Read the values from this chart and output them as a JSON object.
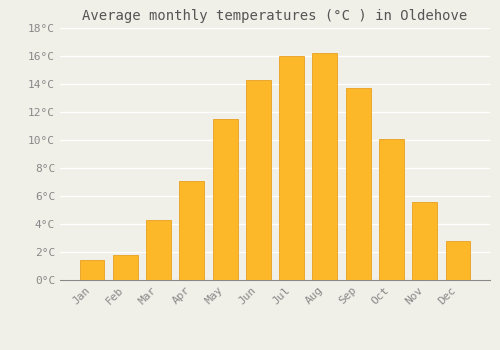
{
  "months": [
    "Jan",
    "Feb",
    "Mar",
    "Apr",
    "May",
    "Jun",
    "Jul",
    "Aug",
    "Sep",
    "Oct",
    "Nov",
    "Dec"
  ],
  "temperatures": [
    1.4,
    1.8,
    4.3,
    7.1,
    11.5,
    14.3,
    16.0,
    16.2,
    13.7,
    10.1,
    5.6,
    2.8
  ],
  "bar_color": "#FDB82A",
  "bar_edge_color": "#E8A020",
  "title": "Average monthly temperatures (°C ) in Oldehove",
  "ylim": [
    0,
    18
  ],
  "ytick_step": 2,
  "background_color": "#F0EFE8",
  "grid_color": "#FFFFFF",
  "title_fontsize": 10,
  "tick_fontsize": 8,
  "font_color": "#888888",
  "title_color": "#555555",
  "bar_width": 0.75
}
